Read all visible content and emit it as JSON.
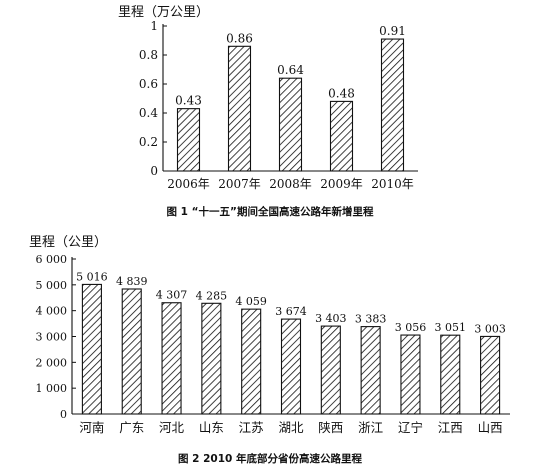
{
  "chart_data": [
    {
      "type": "bar",
      "title": "图 1 “十一五”期间全国高速公路年新增里程",
      "ylabel": "里程（万公里）",
      "xlabel": "",
      "categories": [
        "2006年",
        "2007年",
        "2008年",
        "2009年",
        "2010年"
      ],
      "values": [
        0.43,
        0.86,
        0.64,
        0.48,
        0.91
      ],
      "value_labels": [
        "0.43",
        "0.86",
        "0.64",
        "0.48",
        "0.91"
      ],
      "y_ticks": [
        0,
        0.2,
        0.4,
        0.6,
        0.8,
        1
      ],
      "y_tick_labels": [
        "0",
        "0.2",
        "0.4",
        "0.6",
        "0.8",
        "1"
      ],
      "ylim": [
        0,
        1
      ],
      "grid": false,
      "bar_fill": "diagonal-hatch",
      "color": "#111111"
    },
    {
      "type": "bar",
      "title": "图 2 2010 年底部分省份高速公路里程",
      "ylabel": "里程（公里）",
      "xlabel": "",
      "categories": [
        "河南",
        "广东",
        "河北",
        "山东",
        "江苏",
        "湖北",
        "陕西",
        "浙江",
        "辽宁",
        "江西",
        "山西"
      ],
      "values": [
        5016,
        4839,
        4307,
        4285,
        4059,
        3674,
        3403,
        3383,
        3056,
        3051,
        3003
      ],
      "value_labels": [
        "5 016",
        "4 839",
        "4 307",
        "4 285",
        "4 059",
        "3 674",
        "3 403",
        "3 383",
        "3 056",
        "3 051",
        "3 003"
      ],
      "y_ticks": [
        0,
        1000,
        2000,
        3000,
        4000,
        5000,
        6000
      ],
      "y_tick_labels": [
        "0",
        "1 000",
        "2 000",
        "3 000",
        "4 000",
        "5 000",
        "6 000"
      ],
      "ylim": [
        0,
        6000
      ],
      "grid": false,
      "bar_fill": "diagonal-hatch",
      "color": "#111111"
    }
  ]
}
